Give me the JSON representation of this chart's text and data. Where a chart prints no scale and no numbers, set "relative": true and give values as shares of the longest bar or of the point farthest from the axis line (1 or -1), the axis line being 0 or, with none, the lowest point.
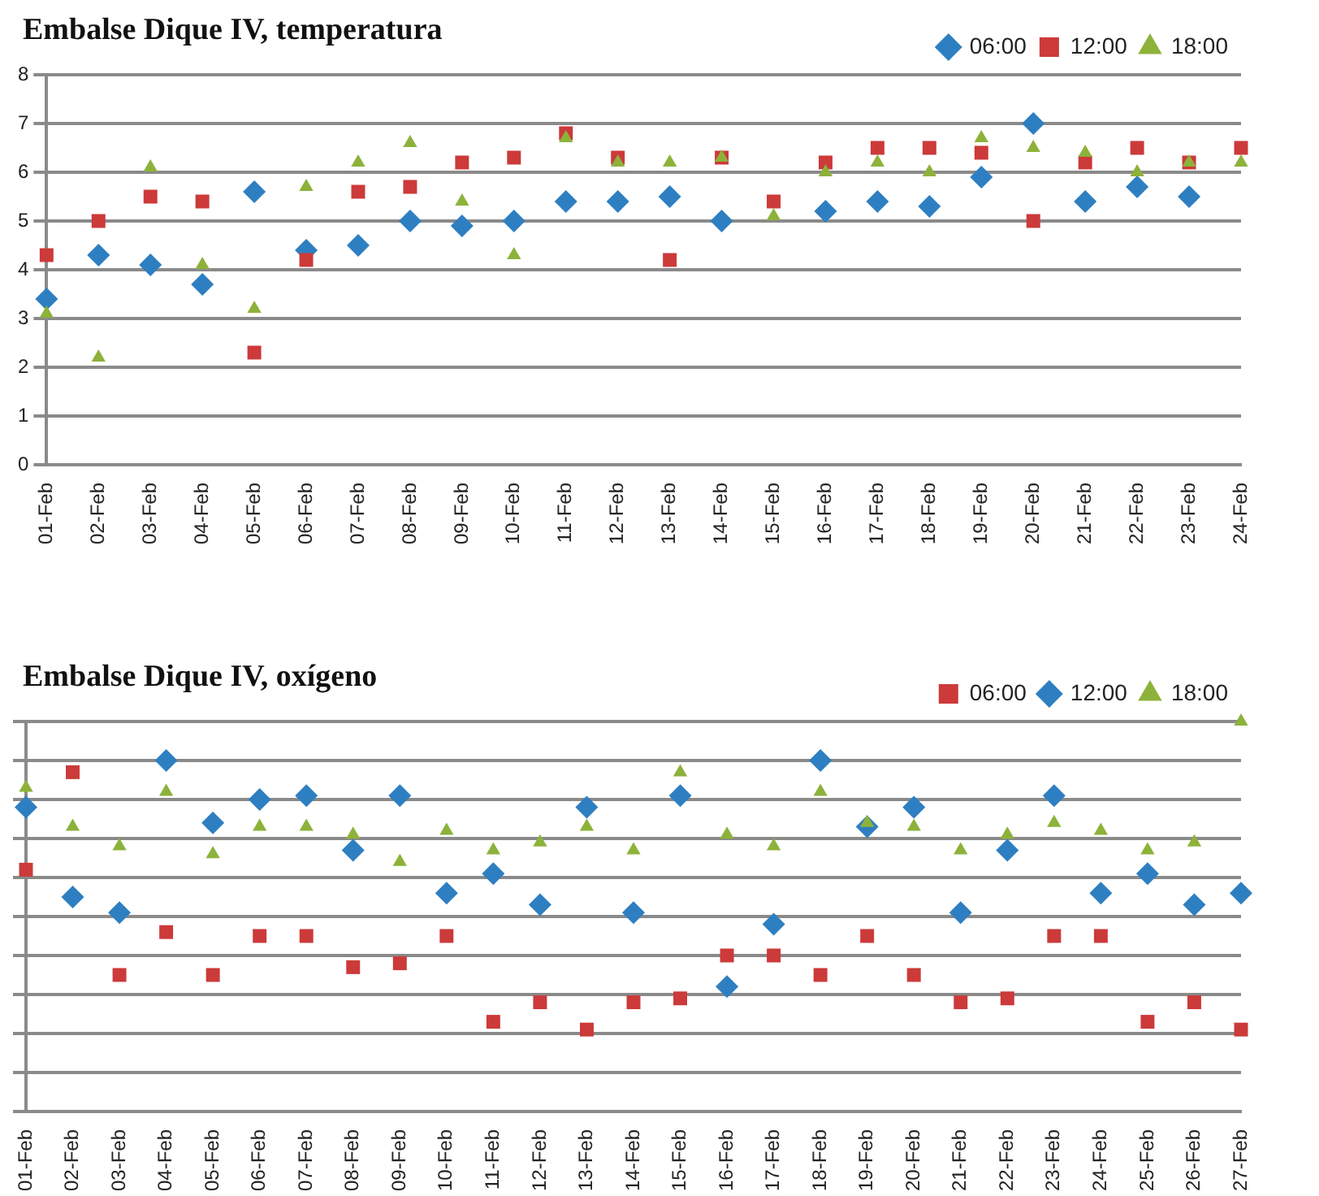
{
  "chart_data": [
    {
      "type": "scatter",
      "title": "Embalse Dique IV, temperatura",
      "categories": [
        "01-Feb",
        "02-Feb",
        "03-Feb",
        "04-Feb",
        "05-Feb",
        "06-Feb",
        "07-Feb",
        "08-Feb",
        "09-Feb",
        "10-Feb",
        "11-Feb",
        "12-Feb",
        "13-Feb",
        "14-Feb",
        "15-Feb",
        "16-Feb",
        "17-Feb",
        "18-Feb",
        "19-Feb",
        "20-Feb",
        "21-Feb",
        "22-Feb",
        "23-Feb",
        "24-Feb"
      ],
      "series": [
        {
          "name": "06:00",
          "color": "#2e7fc1",
          "marker": "diamond",
          "values": [
            3.4,
            4.3,
            4.1,
            3.7,
            5.6,
            4.4,
            4.5,
            5.0,
            4.9,
            5.0,
            5.4,
            5.4,
            5.5,
            5.0,
            null,
            5.2,
            5.4,
            5.3,
            5.9,
            7.0,
            5.4,
            5.7,
            5.5,
            null
          ]
        },
        {
          "name": "12:00",
          "color": "#cc3a3a",
          "marker": "square",
          "values": [
            4.3,
            5.0,
            5.5,
            5.4,
            2.3,
            4.2,
            5.6,
            5.7,
            6.2,
            6.3,
            6.8,
            6.3,
            4.2,
            6.3,
            5.4,
            6.2,
            6.5,
            6.5,
            6.4,
            5.0,
            6.2,
            6.5,
            6.2,
            6.5
          ]
        },
        {
          "name": "18:00",
          "color": "#8db23a",
          "marker": "triangle",
          "values": [
            3.1,
            2.2,
            6.1,
            4.1,
            3.2,
            5.7,
            6.2,
            6.6,
            5.4,
            4.3,
            6.7,
            6.2,
            6.2,
            6.3,
            5.1,
            6.0,
            6.2,
            6.0,
            6.7,
            6.5,
            6.4,
            6.0,
            6.2,
            6.2
          ]
        }
      ],
      "ylim": [
        0,
        8
      ],
      "yticks": [
        0,
        1,
        2,
        3,
        4,
        5,
        6,
        7,
        8
      ],
      "grid": "y",
      "legend": "top right"
    },
    {
      "type": "scatter",
      "title": "Embalse Dique IV, oxígeno",
      "relative": true,
      "tick_labels": "x",
      "categories": [
        "01-Feb",
        "02-Feb",
        "03-Feb",
        "04-Feb",
        "05-Feb",
        "06-Feb",
        "07-Feb",
        "08-Feb",
        "09-Feb",
        "10-Feb",
        "11-Feb",
        "12-Feb",
        "13-Feb",
        "14-Feb",
        "15-Feb",
        "16-Feb",
        "17-Feb",
        "18-Feb",
        "19-Feb",
        "20-Feb",
        "21-Feb",
        "22-Feb",
        "23-Feb",
        "24-Feb",
        "25-Feb",
        "26-Feb",
        "27-Feb"
      ],
      "series": [
        {
          "name": "06:00",
          "color": "#cc3a3a",
          "marker": "square",
          "values": [
            0.62,
            0.87,
            0.35,
            0.46,
            0.35,
            0.45,
            0.45,
            0.37,
            0.38,
            0.45,
            0.23,
            0.28,
            0.21,
            0.28,
            0.29,
            0.4,
            0.4,
            0.35,
            0.45,
            0.35,
            0.28,
            0.29,
            0.45,
            0.45,
            0.23,
            0.28,
            0.21
          ]
        },
        {
          "name": "12:00",
          "color": "#2e7fc1",
          "marker": "diamond",
          "values": [
            0.78,
            0.55,
            0.51,
            0.9,
            0.74,
            0.8,
            0.81,
            0.67,
            0.81,
            0.56,
            0.61,
            0.53,
            0.78,
            0.51,
            0.81,
            0.32,
            0.48,
            0.9,
            0.73,
            0.78,
            0.51,
            0.67,
            0.81,
            0.56,
            0.61,
            0.53,
            0.56
          ]
        },
        {
          "name": "18:00",
          "color": "#8db23a",
          "marker": "triangle",
          "values": [
            0.83,
            0.73,
            0.68,
            0.82,
            0.66,
            0.73,
            0.73,
            0.71,
            0.64,
            0.72,
            0.67,
            0.69,
            0.73,
            0.67,
            0.87,
            0.71,
            0.68,
            0.82,
            0.74,
            0.73,
            0.67,
            0.71,
            0.74,
            0.72,
            0.67,
            0.69,
            1
          ]
        }
      ],
      "grid": "y",
      "legend": "top right"
    }
  ]
}
